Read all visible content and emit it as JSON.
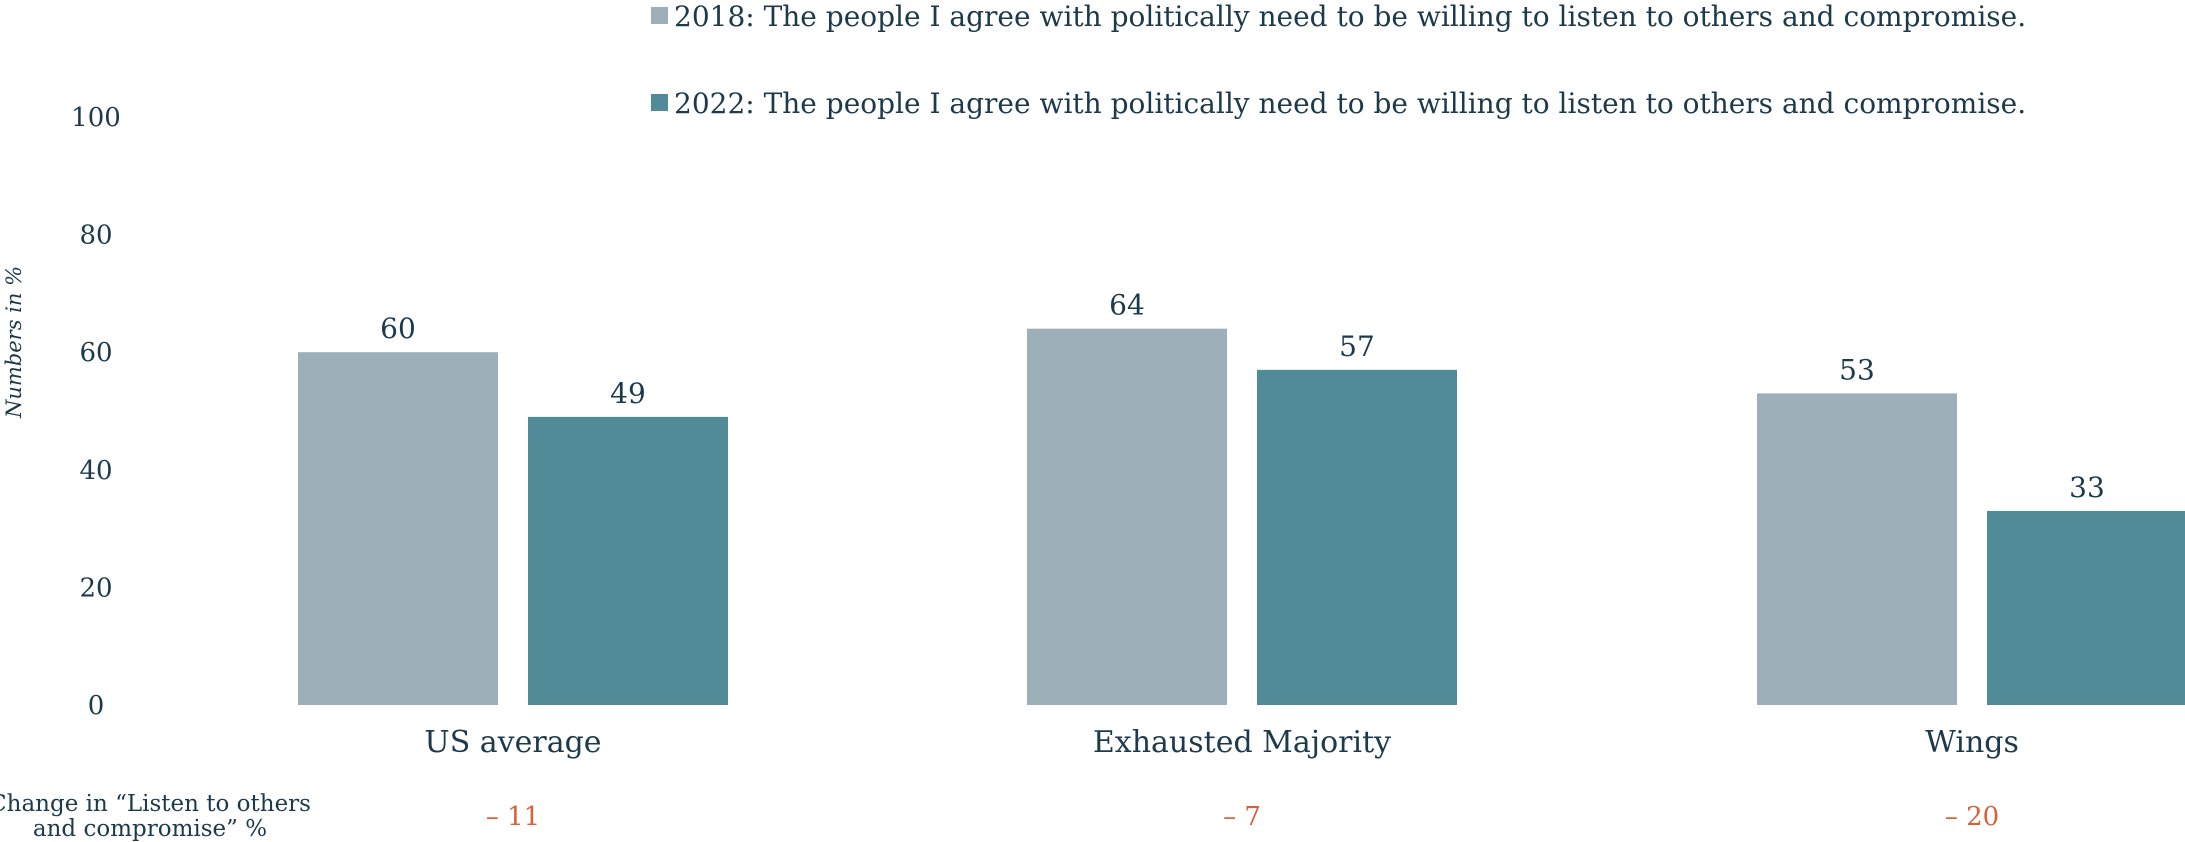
{
  "chart_data": {
    "type": "bar",
    "title": "",
    "xlabel": "",
    "ylabel": "Numbers in %",
    "ylim": [
      0,
      100
    ],
    "yticks": [
      0,
      20,
      40,
      60,
      80,
      100
    ],
    "grid": false,
    "legend_position": "top",
    "categories": [
      "US average",
      "Exhausted Majority",
      "Wings"
    ],
    "series": [
      {
        "name": "2018: The people I agree with politically need to be willing to listen to others and compromise.",
        "color": "#9dafb9",
        "values": [
          60,
          64,
          53
        ]
      },
      {
        "name": "2022: The people I agree with politically need to be willing to listen to others and compromise.",
        "color": "#528b98",
        "values": [
          49,
          57,
          33
        ]
      }
    ],
    "change_row": {
      "label_line1": "Change in “Listen to others",
      "label_line2": "and compromise” %",
      "values": [
        "– 11",
        "– 7",
        "– 20"
      ],
      "color": "#d9603b"
    }
  }
}
